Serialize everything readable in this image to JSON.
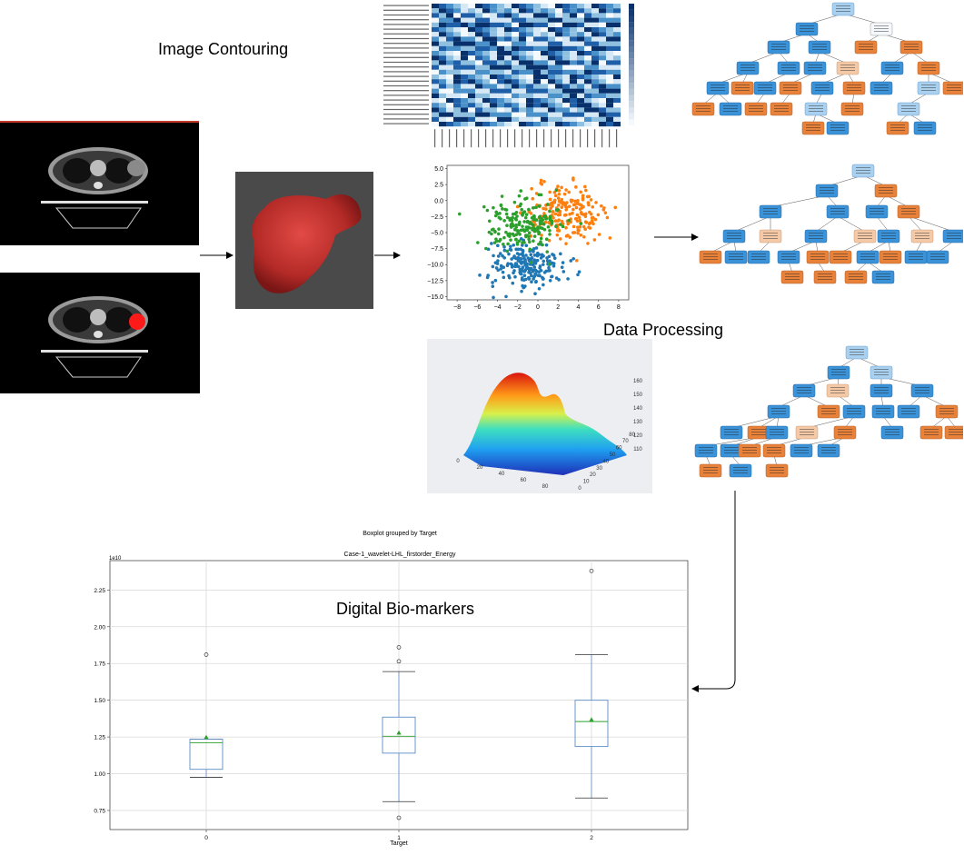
{
  "labels": {
    "image_contouring": "Image Contouring",
    "data_processing": "Data Processing",
    "digital_biomarkers": "Digital Bio-markers"
  },
  "scatter": {
    "xticks": [
      "−8",
      "−6",
      "−4",
      "−2",
      "0",
      "2",
      "4",
      "6",
      "8"
    ],
    "yticks": [
      "5.0",
      "2.5",
      "0.0",
      "−2.5",
      "−5.0",
      "−7.5",
      "−10.0",
      "−12.5",
      "−15.0"
    ]
  },
  "surface": {
    "zticks": [
      "160",
      "150",
      "140",
      "130",
      "120",
      "110"
    ],
    "xticks": [
      "0",
      "20",
      "40",
      "60",
      "80"
    ],
    "yticks": [
      "0",
      "10",
      "20",
      "30",
      "40",
      "50",
      "60",
      "70",
      "80"
    ]
  },
  "chart_data": {
    "type": "box",
    "title": "Boxplot grouped by Target",
    "subtitle": "Case-1_wavelet-LHL_firstorder_Energy",
    "xlabel": "Target",
    "ylabel": "",
    "scale_note": "1e10",
    "categories": [
      "0",
      "1",
      "2"
    ],
    "yticks": [
      "0.75",
      "1.00",
      "1.25",
      "1.50",
      "1.75",
      "2.00",
      "2.25"
    ],
    "ylim": [
      0.62,
      2.45
    ],
    "grid": true,
    "boxes": [
      {
        "category": "0",
        "whisker_low": 0.975,
        "q1": 1.03,
        "median": 1.21,
        "q3": 1.235,
        "whisker_high": 1.235,
        "mean": 1.25,
        "outliers": [
          1.81
        ]
      },
      {
        "category": "1",
        "whisker_low": 0.81,
        "q1": 1.14,
        "median": 1.255,
        "q3": 1.385,
        "whisker_high": 1.695,
        "mean": 1.28,
        "outliers": [
          1.86,
          1.765,
          0.7
        ]
      },
      {
        "category": "2",
        "whisker_low": 0.835,
        "q1": 1.185,
        "median": 1.355,
        "q3": 1.5,
        "whisker_high": 1.81,
        "mean": 1.37,
        "outliers": [
          2.38
        ]
      }
    ]
  },
  "colors": {
    "box": "#5b8fc7",
    "median": "#2ca02c",
    "mean": "#2ca02c",
    "tumor": "#ff1a1a",
    "mesh": "#c8312e",
    "tree_blue": "#3a93d8",
    "tree_orange": "#e8823a"
  }
}
